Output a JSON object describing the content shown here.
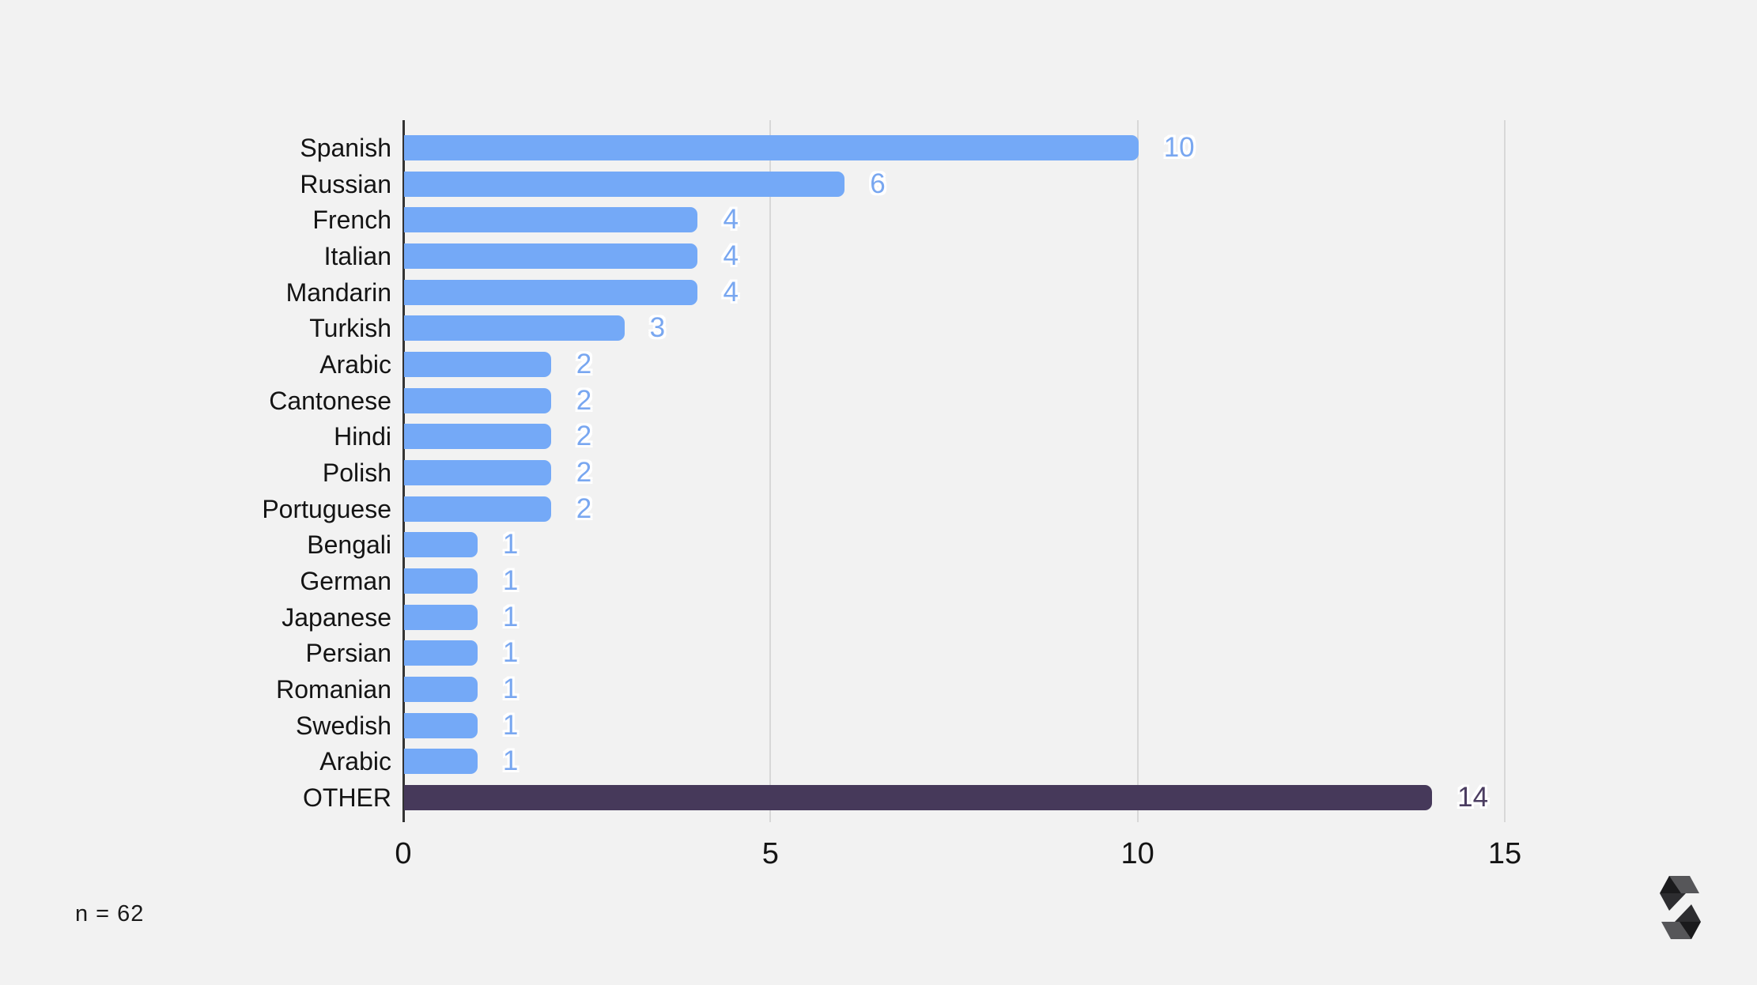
{
  "page": {
    "background": "#f2f2f2"
  },
  "chart_data": {
    "type": "bar",
    "orientation": "horizontal",
    "title": "",
    "categories": [
      "Spanish",
      "Russian",
      "French",
      "Italian",
      "Mandarin",
      "Turkish",
      "Arabic",
      "Cantonese",
      "Hindi",
      "Polish",
      "Portuguese",
      "Bengali",
      "German",
      "Japanese",
      "Persian",
      "Romanian",
      "Swedish",
      "Arabic",
      "OTHER"
    ],
    "values": [
      10,
      6,
      4,
      4,
      4,
      3,
      2,
      2,
      2,
      2,
      2,
      1,
      1,
      1,
      1,
      1,
      1,
      1,
      14
    ],
    "xlabel": "",
    "ylabel": "",
    "xlim": [
      0,
      15
    ],
    "xticks": [
      0,
      5,
      10,
      15
    ],
    "grid": true,
    "legend_position": "none",
    "value_labels_shown": true,
    "bar_color": "#74a9f7",
    "value_label_color": "#79a7f0",
    "axis_line_color": "#333333",
    "gridline_color": "#d8d8d8",
    "highlight": {
      "index": 18,
      "bar_color": "#46395a",
      "value_label_color": "#4b3d61"
    }
  },
  "annotations": {
    "sample_size": "n = 62"
  },
  "icons": {
    "brand_logo": "faceted-s-logo"
  }
}
